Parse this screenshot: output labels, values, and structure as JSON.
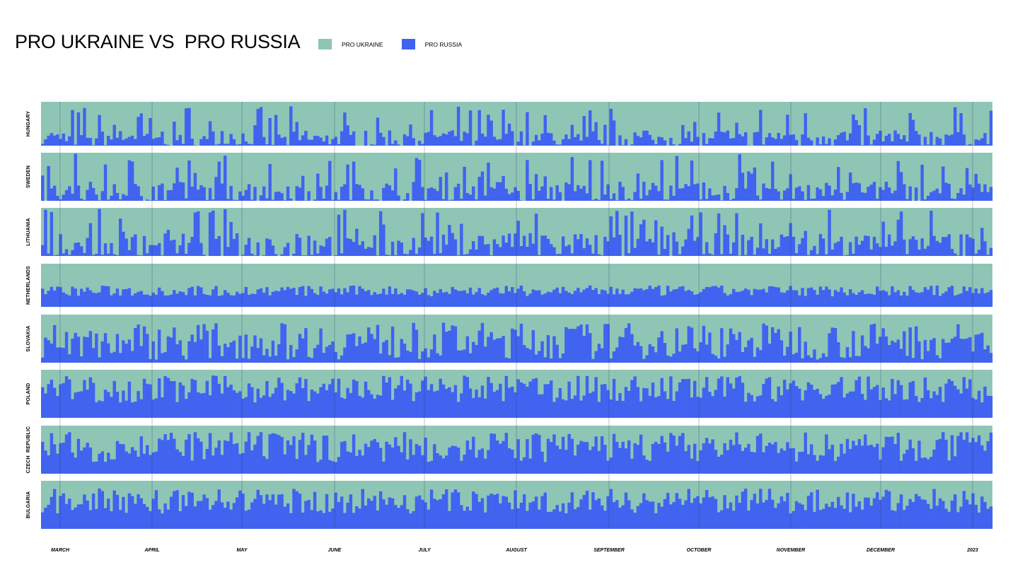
{
  "title": "PRO UKRAINE VS  PRO RUSSIA",
  "legend": [
    {
      "label": "PRO UKRAINE",
      "color": "#8fc5b5"
    },
    {
      "label": "PRO RUSSIA",
      "color": "#4063f0"
    }
  ],
  "chart_data": {
    "type": "bar",
    "layout": "stacked 100% daily bars, one panel per country",
    "x_range": [
      "2022-02-24",
      "2023-01-08"
    ],
    "months": [
      "MARCH",
      "APRIL",
      "MAY",
      "JUNE",
      "JULY",
      "AUGUST",
      "SEPTEMBER",
      "OCTOBER",
      "NOVEMBER",
      "DECEMBER",
      "2023"
    ],
    "colors": {
      "pro_ukraine": "#8fc5b5",
      "pro_russia": "#4063f0",
      "no_data": "#e6e6e6"
    },
    "series": [
      {
        "name": "HUNGARY",
        "avg_pro_russia_share": 0.22,
        "peak_pro_russia_share": 0.9
      },
      {
        "name": "SWEDEN",
        "avg_pro_russia_share": 0.25,
        "peak_pro_russia_share": 0.98
      },
      {
        "name": "LITHUANIA",
        "avg_pro_russia_share": 0.3,
        "peak_pro_russia_share": 0.98
      },
      {
        "name": "NETHERLANDS",
        "avg_pro_russia_share": 0.37,
        "peak_pro_russia_share": 0.55
      },
      {
        "name": "SLOVAKIA",
        "avg_pro_russia_share": 0.45,
        "peak_pro_russia_share": 1.0
      },
      {
        "name": "POLAND",
        "avg_pro_russia_share": 0.6,
        "peak_pro_russia_share": 1.0
      },
      {
        "name": "CZECH  REPUBLIC",
        "avg_pro_russia_share": 0.55,
        "peak_pro_russia_share": 1.0
      },
      {
        "name": "BULGARIA",
        "avg_pro_russia_share": 0.58,
        "peak_pro_russia_share": 0.95
      }
    ]
  }
}
